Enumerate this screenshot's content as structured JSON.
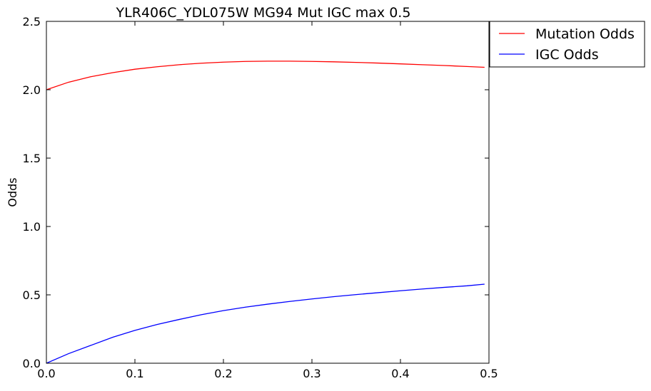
{
  "chart_data": {
    "type": "line",
    "title": "YLR406C_YDL075W MG94 Mut IGC max 0.5",
    "xlabel": "",
    "ylabel": "Odds",
    "xlim": [
      0.0,
      0.5
    ],
    "ylim": [
      0.0,
      2.5
    ],
    "xticks": [
      "0.0",
      "0.1",
      "0.2",
      "0.3",
      "0.4",
      "0.5"
    ],
    "yticks": [
      "0.0",
      "0.5",
      "1.0",
      "1.5",
      "2.0",
      "2.5"
    ],
    "grid": false,
    "legend": {
      "placement": "outside-top-right"
    },
    "x": [
      0.0,
      0.025,
      0.05,
      0.075,
      0.1,
      0.125,
      0.15,
      0.175,
      0.2,
      0.225,
      0.25,
      0.275,
      0.3,
      0.325,
      0.35,
      0.375,
      0.4,
      0.425,
      0.45,
      0.475,
      0.495
    ],
    "series": [
      {
        "name": "Mutation Odds",
        "color": "#ff0000",
        "values": [
          2.0,
          2.055,
          2.095,
          2.125,
          2.15,
          2.168,
          2.183,
          2.194,
          2.202,
          2.207,
          2.209,
          2.209,
          2.207,
          2.204,
          2.2,
          2.195,
          2.189,
          2.183,
          2.177,
          2.17,
          2.164
        ]
      },
      {
        "name": "IGC Odds",
        "color": "#0000ff",
        "values": [
          0.0,
          0.07,
          0.13,
          0.19,
          0.24,
          0.283,
          0.32,
          0.355,
          0.385,
          0.41,
          0.432,
          0.452,
          0.47,
          0.487,
          0.502,
          0.516,
          0.53,
          0.543,
          0.555,
          0.566,
          0.578
        ]
      }
    ]
  }
}
